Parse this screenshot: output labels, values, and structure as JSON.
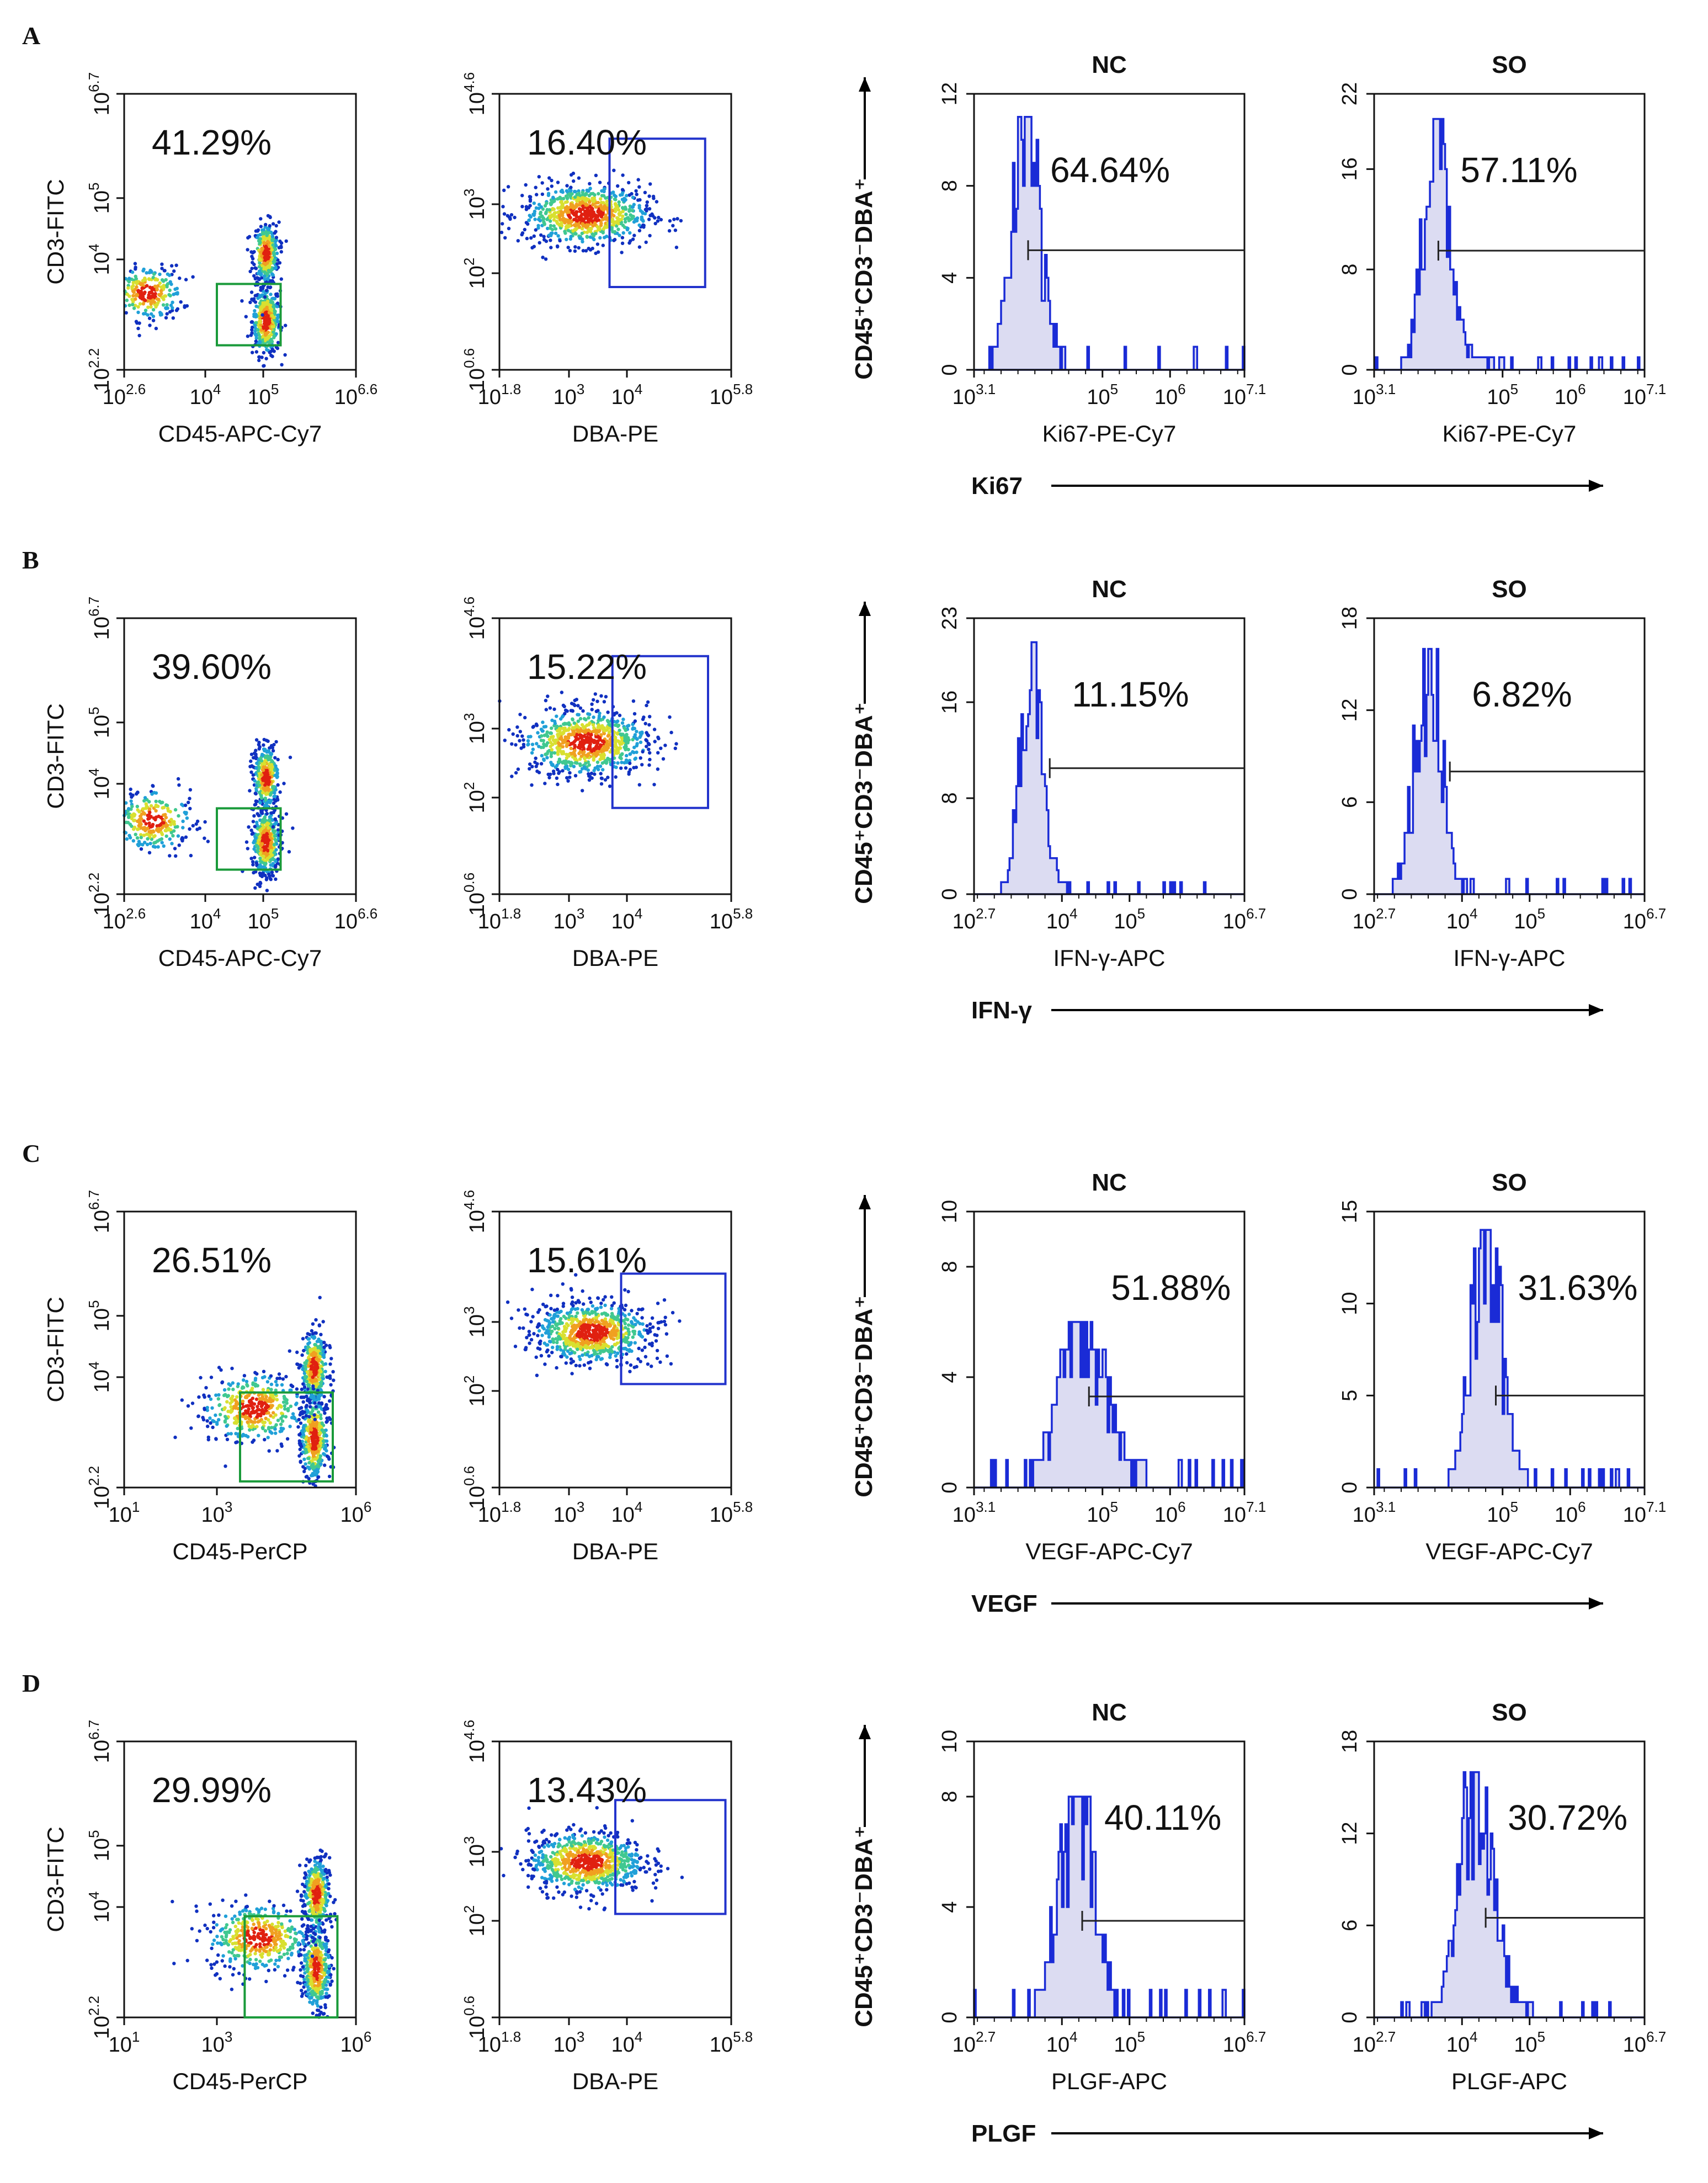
{
  "chart_data": [
    {
      "panel": "A",
      "type": "scatter",
      "dot_plot": {
        "xlabel": "CD45-APC-Cy7",
        "ylabel": "CD3-FITC",
        "x_ticks": [
          [
            "10",
            "2.6"
          ],
          [
            "10",
            "4"
          ],
          [
            "10",
            "5"
          ],
          [
            "10",
            "6.6"
          ]
        ],
        "y_ticks": [
          [
            "10",
            "2.2"
          ],
          [
            "10",
            "4"
          ],
          [
            "10",
            "5"
          ],
          [
            "10",
            "6.7"
          ]
        ],
        "gate_percent": "41.29%",
        "xlim_log": [
          2.6,
          6.6
        ],
        "ylim_log": [
          2.2,
          6.7
        ],
        "gate_log": {
          "x": [
            4.2,
            5.3
          ],
          "y": [
            2.6,
            3.6
          ]
        },
        "populations": [
          {
            "x": 5.05,
            "y": 3.0,
            "sx": 0.12,
            "sy": 0.28,
            "n": 420
          },
          {
            "x": 5.05,
            "y": 4.1,
            "sx": 0.11,
            "sy": 0.25,
            "n": 360
          },
          {
            "x": 3.0,
            "y": 3.45,
            "sx": 0.3,
            "sy": 0.22,
            "n": 260
          }
        ]
      },
      "dba_plot": {
        "xlabel": "DBA-PE",
        "ylabel": "",
        "x_ticks": [
          [
            "10",
            "1.8"
          ],
          [
            "10",
            "3"
          ],
          [
            "10",
            "4"
          ],
          [
            "10",
            "5.8"
          ]
        ],
        "y_ticks": [
          [
            "10",
            "0.6"
          ],
          [
            "10",
            "2"
          ],
          [
            "10",
            "3"
          ],
          [
            "10",
            "4.6"
          ]
        ],
        "gate_percent": "16.40%",
        "xlim_log": [
          1.8,
          5.8
        ],
        "ylim_log": [
          0.6,
          4.6
        ],
        "gate_log": {
          "x": [
            3.7,
            5.35
          ],
          "y": [
            1.8,
            3.95
          ]
        },
        "populations": [
          {
            "x": 3.3,
            "y": 2.85,
            "sx": 0.55,
            "sy": 0.22,
            "n": 800
          }
        ]
      },
      "marker": "Ki67",
      "histogram_ylabel": "CD45⁺CD3⁻DBA⁺",
      "histograms": [
        {
          "title": "NC",
          "xlabel": "Ki67-PE-Cy7",
          "x_ticks": [
            [
              "10",
              "3.1"
            ],
            [
              "10",
              "5"
            ],
            [
              "10",
              "6"
            ],
            [
              "10",
              "7.1"
            ]
          ],
          "xlim_log": [
            3.1,
            7.1
          ],
          "y_ticks": [
            0,
            4,
            8,
            12
          ],
          "ylim": [
            0,
            12
          ],
          "peak_log": 3.85,
          "peak_height": 11,
          "spread": 0.2,
          "tail": 0.15,
          "gate_start_log": 3.9,
          "gate_level": 5.2,
          "gate_percent": "64.64%"
        },
        {
          "title": "SO",
          "xlabel": "Ki67-PE-Cy7",
          "x_ticks": [
            [
              "10",
              "3.1"
            ],
            [
              "10",
              "5"
            ],
            [
              "10",
              "6"
            ],
            [
              "10",
              "7.1"
            ]
          ],
          "xlim_log": [
            3.1,
            7.1
          ],
          "y_ticks": [
            0,
            8,
            16,
            22
          ],
          "ylim": [
            0,
            22
          ],
          "peak_log": 4.0,
          "peak_height": 20,
          "spread": 0.18,
          "tail": 0.2,
          "gate_start_log": 4.05,
          "gate_level": 9.5,
          "gate_percent": "57.11%"
        }
      ]
    },
    {
      "panel": "B",
      "type": "scatter",
      "dot_plot": {
        "xlabel": "CD45-APC-Cy7",
        "ylabel": "CD3-FITC",
        "x_ticks": [
          [
            "10",
            "2.6"
          ],
          [
            "10",
            "4"
          ],
          [
            "10",
            "5"
          ],
          [
            "10",
            "6.6"
          ]
        ],
        "y_ticks": [
          [
            "10",
            "2.2"
          ],
          [
            "10",
            "4"
          ],
          [
            "10",
            "5"
          ],
          [
            "10",
            "6.7"
          ]
        ],
        "gate_percent": "39.60%",
        "xlim_log": [
          2.6,
          6.6
        ],
        "ylim_log": [
          2.2,
          6.7
        ],
        "gate_log": {
          "x": [
            4.2,
            5.3
          ],
          "y": [
            2.6,
            3.6
          ]
        },
        "populations": [
          {
            "x": 5.05,
            "y": 3.05,
            "sx": 0.12,
            "sy": 0.28,
            "n": 420
          },
          {
            "x": 5.05,
            "y": 4.1,
            "sx": 0.11,
            "sy": 0.26,
            "n": 360
          },
          {
            "x": 3.1,
            "y": 3.4,
            "sx": 0.33,
            "sy": 0.25,
            "n": 280
          }
        ]
      },
      "dba_plot": {
        "xlabel": "DBA-PE",
        "ylabel": "",
        "x_ticks": [
          [
            "10",
            "1.8"
          ],
          [
            "10",
            "3"
          ],
          [
            "10",
            "4"
          ],
          [
            "10",
            "5.8"
          ]
        ],
        "y_ticks": [
          [
            "10",
            "0.6"
          ],
          [
            "10",
            "2"
          ],
          [
            "10",
            "3"
          ],
          [
            "10",
            "4.6"
          ]
        ],
        "gate_percent": "15.22%",
        "xlim_log": [
          1.8,
          5.8
        ],
        "ylim_log": [
          0.6,
          4.6
        ],
        "gate_log": {
          "x": [
            3.75,
            5.4
          ],
          "y": [
            1.85,
            4.05
          ]
        },
        "populations": [
          {
            "x": 3.3,
            "y": 2.8,
            "sx": 0.55,
            "sy": 0.24,
            "n": 800
          }
        ]
      },
      "marker": "IFN-γ",
      "histogram_ylabel": "CD45⁺CD3⁻DBA⁺",
      "histograms": [
        {
          "title": "NC",
          "xlabel": "IFN-γ-APC",
          "x_ticks": [
            [
              "10",
              "2.7"
            ],
            [
              "10",
              "4"
            ],
            [
              "10",
              "5"
            ],
            [
              "10",
              "6.7"
            ]
          ],
          "xlim_log": [
            2.7,
            6.7
          ],
          "y_ticks": [
            0,
            8,
            16,
            23
          ],
          "ylim": [
            0,
            23
          ],
          "peak_log": 3.55,
          "peak_height": 21,
          "spread": 0.17,
          "tail": 0.06,
          "gate_start_log": 3.82,
          "gate_level": 10.5,
          "gate_percent": "11.15%"
        },
        {
          "title": "SO",
          "xlabel": "IFN-γ-APC",
          "x_ticks": [
            [
              "10",
              "2.7"
            ],
            [
              "10",
              "4"
            ],
            [
              "10",
              "5"
            ],
            [
              "10",
              "6.7"
            ]
          ],
          "xlim_log": [
            2.7,
            6.7
          ],
          "y_ticks": [
            0,
            6,
            12,
            18
          ],
          "ylim": [
            0,
            18
          ],
          "peak_log": 3.5,
          "peak_height": 16,
          "spread": 0.2,
          "tail": 0.05,
          "gate_start_log": 3.82,
          "gate_level": 8,
          "gate_percent": "6.82%"
        }
      ]
    },
    {
      "panel": "C",
      "type": "scatter",
      "dot_plot": {
        "xlabel": "CD45-PerCP",
        "ylabel": "CD3-FITC",
        "x_ticks": [
          [
            "10",
            "1"
          ],
          [
            "10",
            "3"
          ],
          [
            "10",
            "6"
          ]
        ],
        "y_ticks": [
          [
            "10",
            "2.2"
          ],
          [
            "10",
            "4"
          ],
          [
            "10",
            "5"
          ],
          [
            "10",
            "6.7"
          ]
        ],
        "gate_percent": "26.51%",
        "xlim_log": [
          1,
          6
        ],
        "ylim_log": [
          2.2,
          6.7
        ],
        "gate_log": {
          "x": [
            3.5,
            5.5
          ],
          "y": [
            2.3,
            3.75
          ]
        },
        "populations": [
          {
            "x": 5.1,
            "y": 3.0,
            "sx": 0.15,
            "sy": 0.35,
            "n": 400
          },
          {
            "x": 5.1,
            "y": 4.15,
            "sx": 0.14,
            "sy": 0.3,
            "n": 360
          },
          {
            "x": 3.8,
            "y": 3.5,
            "sx": 0.55,
            "sy": 0.28,
            "n": 420
          }
        ]
      },
      "dba_plot": {
        "xlabel": "DBA-PE",
        "ylabel": "",
        "x_ticks": [
          [
            "10",
            "1.8"
          ],
          [
            "10",
            "3"
          ],
          [
            "10",
            "4"
          ],
          [
            "10",
            "5.8"
          ]
        ],
        "y_ticks": [
          [
            "10",
            "0.6"
          ],
          [
            "10",
            "2"
          ],
          [
            "10",
            "3"
          ],
          [
            "10",
            "4.6"
          ]
        ],
        "gate_percent": "15.61%",
        "xlim_log": [
          1.8,
          5.8
        ],
        "ylim_log": [
          0.6,
          4.6
        ],
        "gate_log": {
          "x": [
            3.9,
            5.7
          ],
          "y": [
            2.1,
            3.7
          ]
        },
        "populations": [
          {
            "x": 3.4,
            "y": 2.85,
            "sx": 0.5,
            "sy": 0.22,
            "n": 780
          }
        ]
      },
      "marker": "VEGF",
      "histogram_ylabel": "CD45⁺CD3⁻DBA⁺",
      "histograms": [
        {
          "title": "NC",
          "xlabel": "VEGF-APC-Cy7",
          "x_ticks": [
            [
              "10",
              "3.1"
            ],
            [
              "10",
              "5"
            ],
            [
              "10",
              "6"
            ],
            [
              "10",
              "7.1"
            ]
          ],
          "xlim_log": [
            3.1,
            7.1
          ],
          "y_ticks": [
            0,
            4,
            8,
            10
          ],
          "ylim": [
            0,
            10
          ],
          "peak_log": 4.7,
          "peak_height": 6,
          "spread": 0.35,
          "tail": 0.15,
          "gate_start_log": 4.8,
          "gate_level": 3.3,
          "gate_percent": "51.88%"
        },
        {
          "title": "SO",
          "xlabel": "VEGF-APC-Cy7",
          "x_ticks": [
            [
              "10",
              "3.1"
            ],
            [
              "10",
              "5"
            ],
            [
              "10",
              "6"
            ],
            [
              "10",
              "7.1"
            ]
          ],
          "xlim_log": [
            3.1,
            7.1
          ],
          "y_ticks": [
            0,
            5,
            10,
            15
          ],
          "ylim": [
            0,
            15
          ],
          "peak_log": 4.75,
          "peak_height": 14,
          "spread": 0.22,
          "tail": 0.1,
          "gate_start_log": 4.9,
          "gate_level": 5,
          "gate_percent": "31.63%"
        }
      ]
    },
    {
      "panel": "D",
      "type": "scatter",
      "dot_plot": {
        "xlabel": "CD45-PerCP",
        "ylabel": "CD3-FITC",
        "x_ticks": [
          [
            "10",
            "1"
          ],
          [
            "10",
            "3"
          ],
          [
            "10",
            "6"
          ]
        ],
        "y_ticks": [
          [
            "10",
            "2.2"
          ],
          [
            "10",
            "4"
          ],
          [
            "10",
            "5"
          ],
          [
            "10",
            "6.7"
          ]
        ],
        "gate_percent": "29.99%",
        "xlim_log": [
          1,
          6
        ],
        "ylim_log": [
          2.2,
          6.7
        ],
        "gate_log": {
          "x": [
            3.6,
            5.6
          ],
          "y": [
            2.2,
            3.85
          ]
        },
        "populations": [
          {
            "x": 5.15,
            "y": 3.0,
            "sx": 0.15,
            "sy": 0.35,
            "n": 400
          },
          {
            "x": 5.15,
            "y": 4.2,
            "sx": 0.14,
            "sy": 0.3,
            "n": 360
          },
          {
            "x": 3.9,
            "y": 3.5,
            "sx": 0.55,
            "sy": 0.28,
            "n": 420
          }
        ]
      },
      "dba_plot": {
        "xlabel": "DBA-PE",
        "ylabel": "",
        "x_ticks": [
          [
            "10",
            "1.8"
          ],
          [
            "10",
            "3"
          ],
          [
            "10",
            "4"
          ],
          [
            "10",
            "5.8"
          ]
        ],
        "y_ticks": [
          [
            "10",
            "0.6"
          ],
          [
            "10",
            "2"
          ],
          [
            "10",
            "3"
          ],
          [
            "10",
            "4.6"
          ]
        ],
        "gate_percent": "13.43%",
        "xlim_log": [
          1.8,
          5.8
        ],
        "ylim_log": [
          0.6,
          4.6
        ],
        "gate_log": {
          "x": [
            3.8,
            5.7
          ],
          "y": [
            2.1,
            3.75
          ]
        },
        "populations": [
          {
            "x": 3.3,
            "y": 2.85,
            "sx": 0.5,
            "sy": 0.22,
            "n": 780
          }
        ]
      },
      "marker": "PLGF",
      "histogram_ylabel": "CD45⁺CD3⁻DBA⁺",
      "histograms": [
        {
          "title": "NC",
          "xlabel": "PLGF-APC",
          "x_ticks": [
            [
              "10",
              "2.7"
            ],
            [
              "10",
              "4"
            ],
            [
              "10",
              "5"
            ],
            [
              "10",
              "6.7"
            ]
          ],
          "xlim_log": [
            2.7,
            6.7
          ],
          "y_ticks": [
            0,
            4,
            8,
            10
          ],
          "ylim": [
            0,
            10
          ],
          "peak_log": 4.2,
          "peak_height": 8,
          "spread": 0.25,
          "tail": 0.15,
          "gate_start_log": 4.3,
          "gate_level": 3.5,
          "gate_percent": "40.11%"
        },
        {
          "title": "SO",
          "xlabel": "PLGF-APC",
          "x_ticks": [
            [
              "10",
              "2.7"
            ],
            [
              "10",
              "4"
            ],
            [
              "10",
              "5"
            ],
            [
              "10",
              "6.7"
            ]
          ],
          "xlim_log": [
            2.7,
            6.7
          ],
          "y_ticks": [
            0,
            6,
            12,
            18
          ],
          "ylim": [
            0,
            18
          ],
          "peak_log": 4.2,
          "peak_height": 16,
          "spread": 0.25,
          "tail": 0.15,
          "gate_start_log": 4.35,
          "gate_level": 6.5,
          "gate_percent": "30.72%"
        }
      ]
    }
  ],
  "colors": {
    "gate_green": "#1a9a3a",
    "gate_blue": "#2233cc",
    "hist_line": "#1a2bd6",
    "hist_fill": "#dcdcf2",
    "axis": "#111111"
  }
}
